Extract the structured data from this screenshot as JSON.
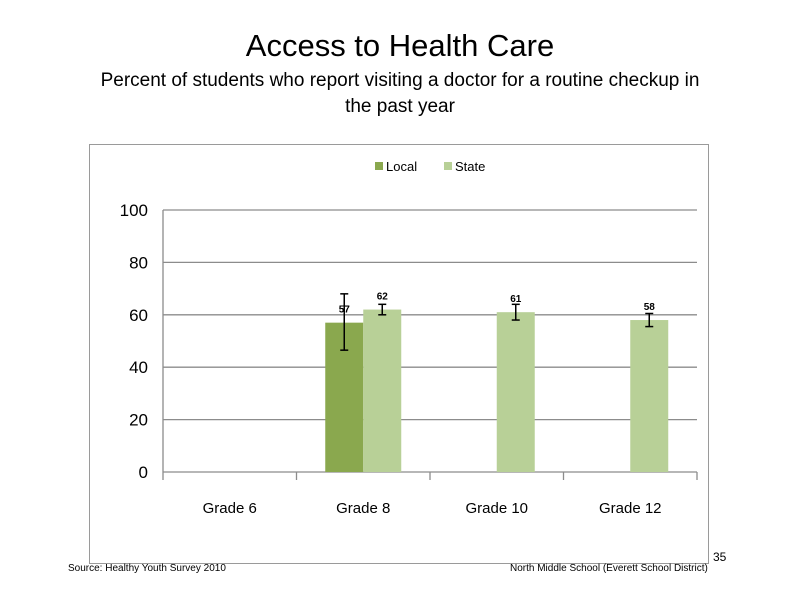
{
  "slide": {
    "title": "Access to Health Care",
    "subtitle": "Percent of students who report visiting a doctor for a routine checkup in the past year",
    "source": "Source: Healthy Youth Survey 2010",
    "school": "North Middle School (Everett School District)",
    "page_number": "35"
  },
  "chart_data": {
    "type": "bar",
    "categories": [
      "Grade 6",
      "Grade 8",
      "Grade 10",
      "Grade 12"
    ],
    "series": [
      {
        "name": "Local",
        "color": "#8aa84e",
        "values": [
          null,
          57,
          null,
          null
        ],
        "error_low": [
          null,
          46.5,
          null,
          null
        ],
        "error_high": [
          null,
          68,
          null,
          null
        ],
        "labels": [
          "",
          "57",
          "",
          ""
        ]
      },
      {
        "name": "State",
        "color": "#b8d097",
        "values": [
          null,
          62,
          61,
          58
        ],
        "error_low": [
          null,
          60,
          58,
          55.5
        ],
        "error_high": [
          null,
          64,
          64,
          60.5
        ],
        "labels": [
          "",
          "62",
          "61",
          "58"
        ]
      }
    ],
    "ylim": [
      0,
      100
    ],
    "yticks": [
      0,
      20,
      40,
      60,
      80,
      100
    ],
    "grid": true,
    "legend": "top-center"
  }
}
